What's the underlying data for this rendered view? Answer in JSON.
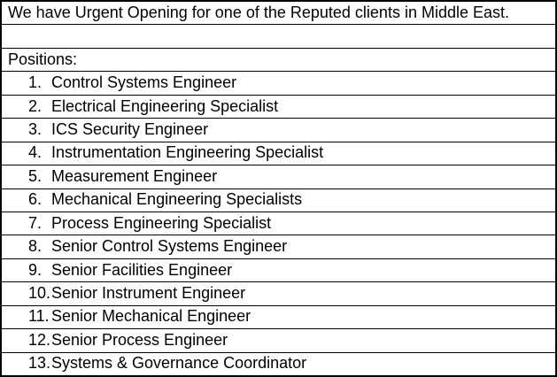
{
  "table": {
    "title": "We have Urgent Opening for one of the Reputed clients in Middle East.",
    "positions_heading": "Positions:",
    "items": [
      {
        "num": "1.",
        "title": "Control Systems Engineer"
      },
      {
        "num": "2.",
        "title": "Electrical Engineering Specialist"
      },
      {
        "num": "3.",
        "title": "ICS Security Engineer"
      },
      {
        "num": "4.",
        "title": "Instrumentation Engineering Specialist"
      },
      {
        "num": "5.",
        "title": "Measurement Engineer"
      },
      {
        "num": "6.",
        "title": "Mechanical Engineering Specialists"
      },
      {
        "num": "7.",
        "title": "Process Engineering Specialist"
      },
      {
        "num": "8.",
        "title": "Senior Control Systems Engineer"
      },
      {
        "num": "9.",
        "title": "Senior Facilities Engineer"
      },
      {
        "num": "10.",
        "title": "Senior Instrument Engineer"
      },
      {
        "num": "11.",
        "title": "Senior Mechanical Engineer"
      },
      {
        "num": "12.",
        "title": "Senior Process Engineer"
      },
      {
        "num": "13.",
        "title": "Systems & Governance Coordinator"
      }
    ],
    "colors": {
      "border": "#000000",
      "text": "#000000",
      "background": "#ffffff"
    }
  }
}
